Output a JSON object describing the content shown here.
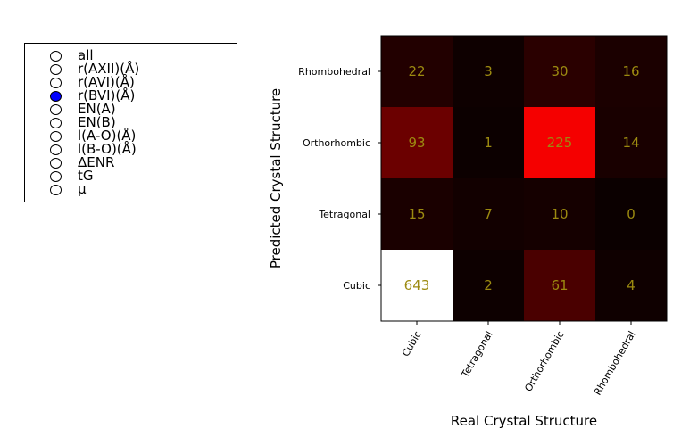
{
  "radio_panel": {
    "options": [
      {
        "label": "all",
        "selected": false
      },
      {
        "label": "r(AXII)(Å)",
        "selected": false
      },
      {
        "label": "r(AVI)(Å)",
        "selected": false
      },
      {
        "label": "r(BVI)(Å)",
        "selected": true
      },
      {
        "label": "EN(A)",
        "selected": false
      },
      {
        "label": "EN(B)",
        "selected": false
      },
      {
        "label": "l(A-O)(Å)",
        "selected": false
      },
      {
        "label": "l(B-O)(Å)",
        "selected": false
      },
      {
        "label": "ΔENR",
        "selected": false
      },
      {
        "label": "tG",
        "selected": false
      },
      {
        "label": "μ",
        "selected": false
      }
    ],
    "selected_color": "#0000ff"
  },
  "chart_data": {
    "type": "heatmap",
    "xlabel": "Real Crystal Structure",
    "ylabel": "Predicted Crystal Structure",
    "x_categories": [
      "Cubic",
      "Tetragonal",
      "Orthorhombic",
      "Rhombohedral"
    ],
    "y_categories": [
      "Rhombohedral",
      "Orthorhombic",
      "Tetragonal",
      "Cubic"
    ],
    "values": [
      [
        22,
        3,
        30,
        16
      ],
      [
        93,
        1,
        225,
        14
      ],
      [
        15,
        7,
        10,
        0
      ],
      [
        643,
        2,
        61,
        4
      ]
    ],
    "colormap": "hot",
    "value_range": [
      0,
      643
    ],
    "annotation_color": "#9c8a10"
  }
}
